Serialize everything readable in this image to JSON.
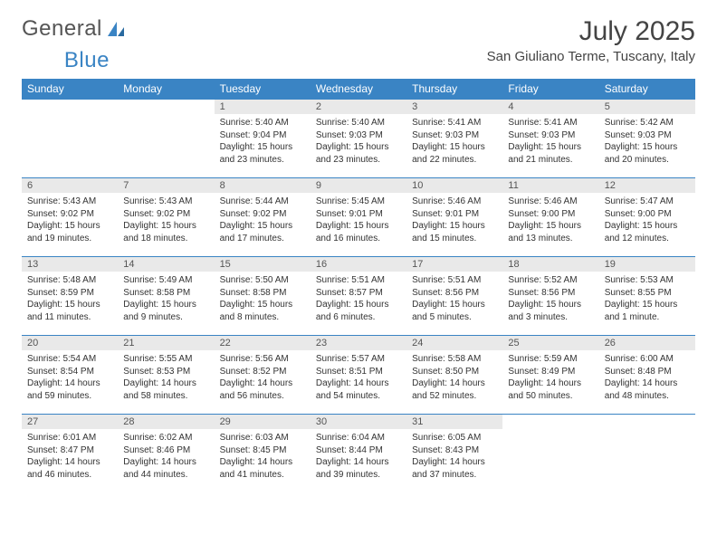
{
  "brand": {
    "part1": "General",
    "part2": "Blue"
  },
  "header": {
    "month_title": "July 2025",
    "location": "San Giuliano Terme, Tuscany, Italy"
  },
  "style": {
    "accent": "#3a84c4",
    "daynum_bg": "#e9e9e9",
    "text": "#333333"
  },
  "weekdays": [
    "Sunday",
    "Monday",
    "Tuesday",
    "Wednesday",
    "Thursday",
    "Friday",
    "Saturday"
  ],
  "weeks": [
    [
      null,
      null,
      {
        "n": "1",
        "sr": "Sunrise: 5:40 AM",
        "ss": "Sunset: 9:04 PM",
        "dl1": "Daylight: 15 hours",
        "dl2": "and 23 minutes."
      },
      {
        "n": "2",
        "sr": "Sunrise: 5:40 AM",
        "ss": "Sunset: 9:03 PM",
        "dl1": "Daylight: 15 hours",
        "dl2": "and 23 minutes."
      },
      {
        "n": "3",
        "sr": "Sunrise: 5:41 AM",
        "ss": "Sunset: 9:03 PM",
        "dl1": "Daylight: 15 hours",
        "dl2": "and 22 minutes."
      },
      {
        "n": "4",
        "sr": "Sunrise: 5:41 AM",
        "ss": "Sunset: 9:03 PM",
        "dl1": "Daylight: 15 hours",
        "dl2": "and 21 minutes."
      },
      {
        "n": "5",
        "sr": "Sunrise: 5:42 AM",
        "ss": "Sunset: 9:03 PM",
        "dl1": "Daylight: 15 hours",
        "dl2": "and 20 minutes."
      }
    ],
    [
      {
        "n": "6",
        "sr": "Sunrise: 5:43 AM",
        "ss": "Sunset: 9:02 PM",
        "dl1": "Daylight: 15 hours",
        "dl2": "and 19 minutes."
      },
      {
        "n": "7",
        "sr": "Sunrise: 5:43 AM",
        "ss": "Sunset: 9:02 PM",
        "dl1": "Daylight: 15 hours",
        "dl2": "and 18 minutes."
      },
      {
        "n": "8",
        "sr": "Sunrise: 5:44 AM",
        "ss": "Sunset: 9:02 PM",
        "dl1": "Daylight: 15 hours",
        "dl2": "and 17 minutes."
      },
      {
        "n": "9",
        "sr": "Sunrise: 5:45 AM",
        "ss": "Sunset: 9:01 PM",
        "dl1": "Daylight: 15 hours",
        "dl2": "and 16 minutes."
      },
      {
        "n": "10",
        "sr": "Sunrise: 5:46 AM",
        "ss": "Sunset: 9:01 PM",
        "dl1": "Daylight: 15 hours",
        "dl2": "and 15 minutes."
      },
      {
        "n": "11",
        "sr": "Sunrise: 5:46 AM",
        "ss": "Sunset: 9:00 PM",
        "dl1": "Daylight: 15 hours",
        "dl2": "and 13 minutes."
      },
      {
        "n": "12",
        "sr": "Sunrise: 5:47 AM",
        "ss": "Sunset: 9:00 PM",
        "dl1": "Daylight: 15 hours",
        "dl2": "and 12 minutes."
      }
    ],
    [
      {
        "n": "13",
        "sr": "Sunrise: 5:48 AM",
        "ss": "Sunset: 8:59 PM",
        "dl1": "Daylight: 15 hours",
        "dl2": "and 11 minutes."
      },
      {
        "n": "14",
        "sr": "Sunrise: 5:49 AM",
        "ss": "Sunset: 8:58 PM",
        "dl1": "Daylight: 15 hours",
        "dl2": "and 9 minutes."
      },
      {
        "n": "15",
        "sr": "Sunrise: 5:50 AM",
        "ss": "Sunset: 8:58 PM",
        "dl1": "Daylight: 15 hours",
        "dl2": "and 8 minutes."
      },
      {
        "n": "16",
        "sr": "Sunrise: 5:51 AM",
        "ss": "Sunset: 8:57 PM",
        "dl1": "Daylight: 15 hours",
        "dl2": "and 6 minutes."
      },
      {
        "n": "17",
        "sr": "Sunrise: 5:51 AM",
        "ss": "Sunset: 8:56 PM",
        "dl1": "Daylight: 15 hours",
        "dl2": "and 5 minutes."
      },
      {
        "n": "18",
        "sr": "Sunrise: 5:52 AM",
        "ss": "Sunset: 8:56 PM",
        "dl1": "Daylight: 15 hours",
        "dl2": "and 3 minutes."
      },
      {
        "n": "19",
        "sr": "Sunrise: 5:53 AM",
        "ss": "Sunset: 8:55 PM",
        "dl1": "Daylight: 15 hours",
        "dl2": "and 1 minute."
      }
    ],
    [
      {
        "n": "20",
        "sr": "Sunrise: 5:54 AM",
        "ss": "Sunset: 8:54 PM",
        "dl1": "Daylight: 14 hours",
        "dl2": "and 59 minutes."
      },
      {
        "n": "21",
        "sr": "Sunrise: 5:55 AM",
        "ss": "Sunset: 8:53 PM",
        "dl1": "Daylight: 14 hours",
        "dl2": "and 58 minutes."
      },
      {
        "n": "22",
        "sr": "Sunrise: 5:56 AM",
        "ss": "Sunset: 8:52 PM",
        "dl1": "Daylight: 14 hours",
        "dl2": "and 56 minutes."
      },
      {
        "n": "23",
        "sr": "Sunrise: 5:57 AM",
        "ss": "Sunset: 8:51 PM",
        "dl1": "Daylight: 14 hours",
        "dl2": "and 54 minutes."
      },
      {
        "n": "24",
        "sr": "Sunrise: 5:58 AM",
        "ss": "Sunset: 8:50 PM",
        "dl1": "Daylight: 14 hours",
        "dl2": "and 52 minutes."
      },
      {
        "n": "25",
        "sr": "Sunrise: 5:59 AM",
        "ss": "Sunset: 8:49 PM",
        "dl1": "Daylight: 14 hours",
        "dl2": "and 50 minutes."
      },
      {
        "n": "26",
        "sr": "Sunrise: 6:00 AM",
        "ss": "Sunset: 8:48 PM",
        "dl1": "Daylight: 14 hours",
        "dl2": "and 48 minutes."
      }
    ],
    [
      {
        "n": "27",
        "sr": "Sunrise: 6:01 AM",
        "ss": "Sunset: 8:47 PM",
        "dl1": "Daylight: 14 hours",
        "dl2": "and 46 minutes."
      },
      {
        "n": "28",
        "sr": "Sunrise: 6:02 AM",
        "ss": "Sunset: 8:46 PM",
        "dl1": "Daylight: 14 hours",
        "dl2": "and 44 minutes."
      },
      {
        "n": "29",
        "sr": "Sunrise: 6:03 AM",
        "ss": "Sunset: 8:45 PM",
        "dl1": "Daylight: 14 hours",
        "dl2": "and 41 minutes."
      },
      {
        "n": "30",
        "sr": "Sunrise: 6:04 AM",
        "ss": "Sunset: 8:44 PM",
        "dl1": "Daylight: 14 hours",
        "dl2": "and 39 minutes."
      },
      {
        "n": "31",
        "sr": "Sunrise: 6:05 AM",
        "ss": "Sunset: 8:43 PM",
        "dl1": "Daylight: 14 hours",
        "dl2": "and 37 minutes."
      },
      null,
      null
    ]
  ]
}
